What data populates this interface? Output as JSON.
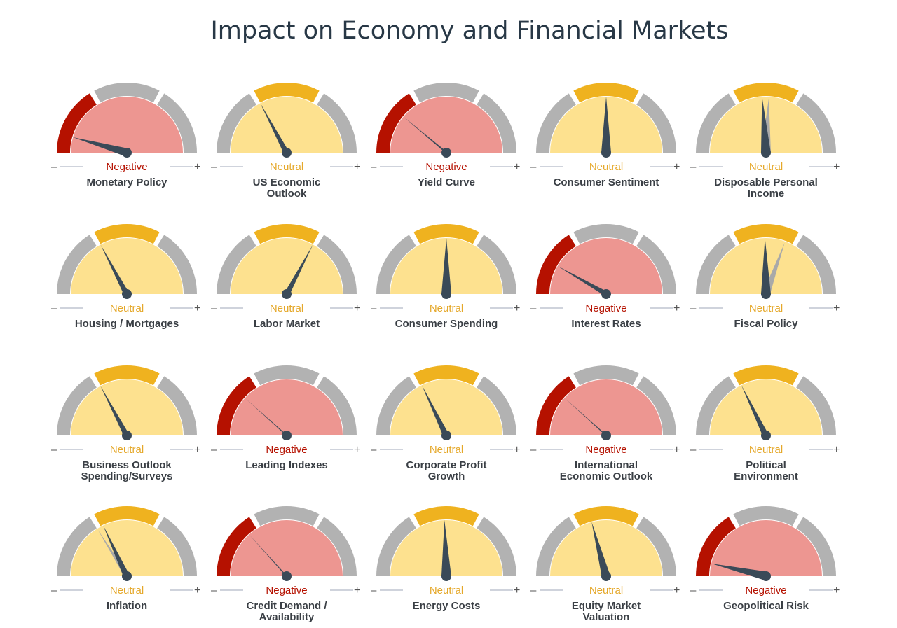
{
  "title": "Impact on Economy and Financial Markets",
  "colors": {
    "negative_fill": "#ed9691",
    "negative_band": "#b51100",
    "neutral_fill": "#fde18f",
    "neutral_band": "#efb21f",
    "positive_fill": "#bfe3a8",
    "positive_band": "#4f9a2a",
    "ring": "#b2b2b2",
    "needle": "#3a4a58",
    "ghost_needle": "#a9a9a9",
    "negative_text": "#b51100",
    "neutral_text": "#e5a82a",
    "scale_line": "#cfd3dc"
  },
  "scale": {
    "minus": "–",
    "plus": "+"
  },
  "chart_data": {
    "type": "gauge",
    "scale_note": "needle_deg: 0 = far left (negative), 90 = straight up (neutral center), 180 = far right (positive)",
    "gauges": [
      {
        "name": "Monetary Policy",
        "status": "Negative",
        "needle_deg": 16
      },
      {
        "name": "US Economic Outlook",
        "status": "Neutral",
        "needle_deg": 62
      },
      {
        "name": "Yield Curve",
        "status": "Negative",
        "needle_deg": 40
      },
      {
        "name": "Consumer Sentiment",
        "status": "Neutral",
        "needle_deg": 90
      },
      {
        "name": "Disposable Personal Income",
        "status": "Neutral",
        "needle_deg": 86,
        "prior_deg": 93
      },
      {
        "name": "Housing / Mortgages",
        "status": "Neutral",
        "needle_deg": 62
      },
      {
        "name": "Labor Market",
        "status": "Neutral",
        "needle_deg": 118
      },
      {
        "name": "Consumer Spending",
        "status": "Neutral",
        "needle_deg": 90
      },
      {
        "name": "Interest Rates",
        "status": "Negative",
        "needle_deg": 30
      },
      {
        "name": "Fiscal Policy",
        "status": "Neutral",
        "needle_deg": 89,
        "prior_deg": 110
      },
      {
        "name": "Business Outlook Spending/Surveys",
        "status": "Neutral",
        "needle_deg": 62
      },
      {
        "name": "Leading Indexes",
        "status": "Negative",
        "needle_deg": 42
      },
      {
        "name": "Corporate Profit Growth",
        "status": "Neutral",
        "needle_deg": 64
      },
      {
        "name": "International Economic Outlook",
        "status": "Negative",
        "needle_deg": 42
      },
      {
        "name": "Political Environment",
        "status": "Neutral",
        "needle_deg": 64
      },
      {
        "name": "Inflation",
        "status": "Neutral",
        "needle_deg": 65,
        "prior_deg": 58
      },
      {
        "name": "Credit Demand / Availability",
        "status": "Negative",
        "needle_deg": 48
      },
      {
        "name": "Energy Costs",
        "status": "Neutral",
        "needle_deg": 88
      },
      {
        "name": "Equity Market Valuation",
        "status": "Neutral",
        "needle_deg": 75
      },
      {
        "name": "Geopolitical Risk",
        "status": "Negative",
        "needle_deg": 13
      }
    ]
  }
}
